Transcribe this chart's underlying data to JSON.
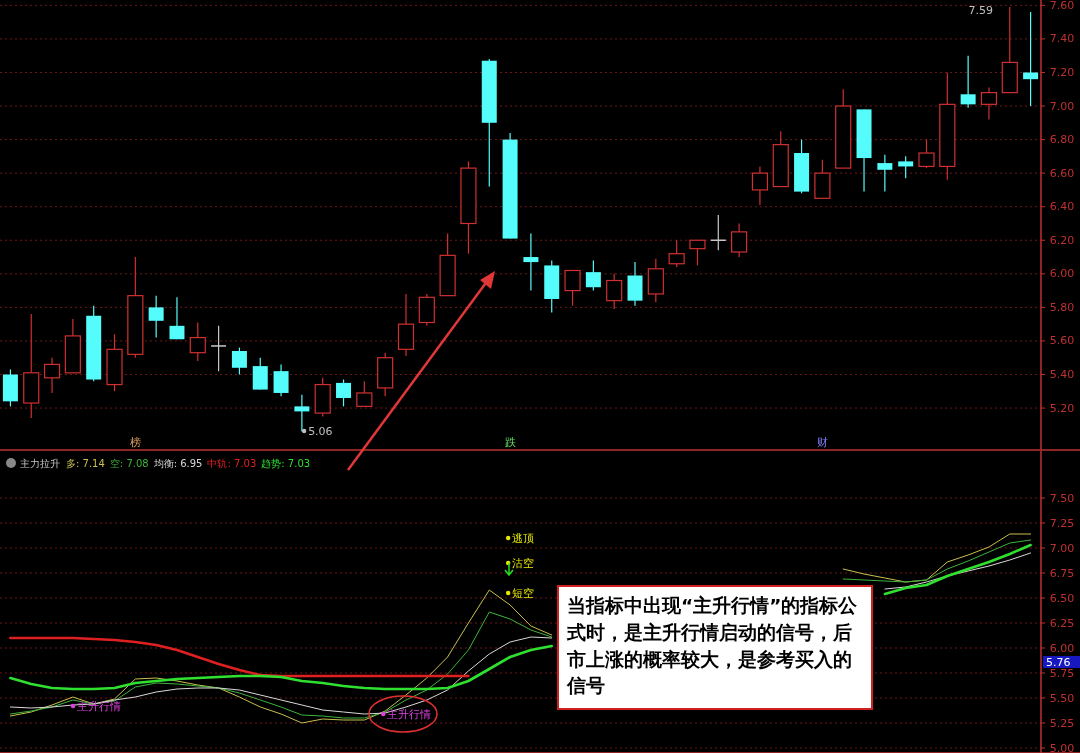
{
  "chart_data": [
    {
      "type": "candlestick",
      "categories": [
        null,
        null,
        null,
        null,
        null,
        null,
        null,
        null,
        null,
        null,
        null,
        null,
        null,
        null,
        null,
        null,
        null,
        null,
        null,
        null,
        null,
        null,
        null,
        null,
        null,
        null,
        null,
        null,
        null,
        null,
        null,
        null,
        null,
        null,
        null,
        null,
        null,
        null,
        null,
        null,
        null,
        null,
        null,
        null,
        null,
        null,
        null,
        null,
        null,
        null
      ],
      "ohlc": [
        [
          5.4,
          5.43,
          5.21,
          5.24
        ],
        [
          5.23,
          5.76,
          5.14,
          5.41
        ],
        [
          5.38,
          5.5,
          5.29,
          5.46
        ],
        [
          5.41,
          5.73,
          5.41,
          5.63
        ],
        [
          5.75,
          5.81,
          5.36,
          5.37
        ],
        [
          5.34,
          5.64,
          5.3,
          5.55
        ],
        [
          5.52,
          6.1,
          5.5,
          5.87
        ],
        [
          5.8,
          5.87,
          5.62,
          5.72
        ],
        [
          5.69,
          5.86,
          5.61,
          5.61
        ],
        [
          5.53,
          5.71,
          5.48,
          5.62
        ],
        [
          5.57,
          5.69,
          5.42,
          5.57
        ],
        [
          5.54,
          5.56,
          5.4,
          5.44
        ],
        [
          5.45,
          5.5,
          5.31,
          5.31
        ],
        [
          5.42,
          5.46,
          5.27,
          5.29
        ],
        [
          5.21,
          5.28,
          5.06,
          5.18
        ],
        [
          5.17,
          5.38,
          5.15,
          5.34
        ],
        [
          5.35,
          5.37,
          5.21,
          5.26
        ],
        [
          5.21,
          5.36,
          5.21,
          5.29
        ],
        [
          5.32,
          5.53,
          5.27,
          5.5
        ],
        [
          5.55,
          5.88,
          5.51,
          5.7
        ],
        [
          5.71,
          5.88,
          5.69,
          5.86
        ],
        [
          5.87,
          6.24,
          5.87,
          6.11
        ],
        [
          6.3,
          6.67,
          6.12,
          6.63
        ],
        [
          7.27,
          7.28,
          6.52,
          6.9
        ],
        [
          6.8,
          6.84,
          6.21,
          6.21
        ],
        [
          6.1,
          6.24,
          5.9,
          6.07
        ],
        [
          6.05,
          6.08,
          5.77,
          5.85
        ],
        [
          5.9,
          6.02,
          5.81,
          6.02
        ],
        [
          6.01,
          6.08,
          5.9,
          5.92
        ],
        [
          5.84,
          6.0,
          5.79,
          5.96
        ],
        [
          5.99,
          6.07,
          5.81,
          5.84
        ],
        [
          5.88,
          6.09,
          5.83,
          6.03
        ],
        [
          6.06,
          6.2,
          6.04,
          6.12
        ],
        [
          6.15,
          6.2,
          6.05,
          6.2
        ],
        [
          6.2,
          6.35,
          6.14,
          6.2
        ],
        [
          6.13,
          6.3,
          6.1,
          6.25
        ],
        [
          6.5,
          6.64,
          6.41,
          6.6
        ],
        [
          6.52,
          6.85,
          6.52,
          6.77
        ],
        [
          6.72,
          6.8,
          6.48,
          6.49
        ],
        [
          6.45,
          6.68,
          6.45,
          6.6
        ],
        [
          6.63,
          7.1,
          6.63,
          7.0
        ],
        [
          6.98,
          6.98,
          6.49,
          6.69
        ],
        [
          6.66,
          6.71,
          6.49,
          6.62
        ],
        [
          6.67,
          6.7,
          6.57,
          6.64
        ],
        [
          6.64,
          6.8,
          6.63,
          6.72
        ],
        [
          6.64,
          7.2,
          6.56,
          7.01
        ],
        [
          7.07,
          7.3,
          6.99,
          7.01
        ],
        [
          7.01,
          7.11,
          6.92,
          7.08
        ],
        [
          7.08,
          7.59,
          7.08,
          7.26
        ],
        [
          7.2,
          7.56,
          7.0,
          7.16
        ]
      ],
      "colors": [
        "#54fcfc",
        "#d03030",
        "#d03030",
        "#d03030",
        "#54fcfc",
        "#d03030",
        "#d03030",
        "#54fcfc",
        "#54fcfc",
        "#d03030",
        "#c8c8c8",
        "#54fcfc",
        "#54fcfc",
        "#54fcfc",
        "#54fcfc",
        "#d03030",
        "#54fcfc",
        "#d03030",
        "#d03030",
        "#d03030",
        "#d03030",
        "#d03030",
        "#d03030",
        "#54fcfc",
        "#54fcfc",
        "#54fcfc",
        "#54fcfc",
        "#d03030",
        "#54fcfc",
        "#d03030",
        "#54fcfc",
        "#d03030",
        "#d03030",
        "#d03030",
        "#c8c8c8",
        "#d03030",
        "#d03030",
        "#d03030",
        "#54fcfc",
        "#d03030",
        "#d03030",
        "#54fcfc",
        "#54fcfc",
        "#54fcfc",
        "#d03030",
        "#d03030",
        "#54fcfc",
        "#d03030",
        "#d03030",
        "#54fcfc"
      ],
      "ylim": [
        4.95,
        7.62
      ],
      "yticks": [
        {
          "value": 5.2,
          "label": "5.20"
        },
        {
          "value": 5.4,
          "label": "5.40"
        },
        {
          "value": 5.6,
          "label": "5.60"
        },
        {
          "value": 5.8,
          "label": "5.80"
        },
        {
          "value": 6.0,
          "label": "6.00"
        },
        {
          "value": 6.2,
          "label": "6.20"
        },
        {
          "value": 6.4,
          "label": "6.40"
        },
        {
          "value": 6.6,
          "label": "6.60"
        },
        {
          "value": 6.8,
          "label": "6.80"
        },
        {
          "value": 7.0,
          "label": "7.00"
        },
        {
          "value": 7.2,
          "label": "7.20"
        },
        {
          "value": 7.4,
          "label": "7.40"
        },
        {
          "value": 7.6,
          "label": "7.60"
        }
      ],
      "grid": "y",
      "tick_labels": "y",
      "annotations": [
        "榜",
        "跌",
        "财",
        "5.06",
        "7.59"
      ]
    },
    {
      "type": "line",
      "title": "主力拉升",
      "categories": [
        null,
        null,
        null,
        null,
        null,
        null,
        null,
        null,
        null,
        null,
        null,
        null,
        null,
        null,
        null,
        null,
        null,
        null,
        null,
        null,
        null,
        null,
        null,
        null,
        null,
        null,
        null,
        null,
        null,
        null,
        null,
        null,
        null,
        null,
        null,
        null,
        null,
        null,
        null,
        null,
        null,
        null,
        null,
        null,
        null,
        null,
        null,
        null,
        null,
        null
      ],
      "series": [
        {
          "name": "多: 7.14",
          "color": "#c8c050",
          "values": [
            5.32,
            5.36,
            5.43,
            5.51,
            5.44,
            5.49,
            5.69,
            5.7,
            5.67,
            5.63,
            5.6,
            5.51,
            5.41,
            5.34,
            5.25,
            5.29,
            5.28,
            5.28,
            5.37,
            5.53,
            5.7,
            5.91,
            6.25,
            6.58,
            6.43,
            6.22,
            6.13,
            null,
            null,
            null,
            null,
            null,
            null,
            null,
            null,
            null,
            null,
            null,
            null,
            null,
            6.79,
            6.74,
            6.7,
            6.66,
            6.68,
            6.86,
            6.93,
            7.01,
            7.14,
            7.14
          ]
        },
        {
          "name": "空: 7.08",
          "color": "#3cb43c",
          "values": [
            5.34,
            5.37,
            5.41,
            5.48,
            5.44,
            5.47,
            5.61,
            5.65,
            5.64,
            5.62,
            5.6,
            5.55,
            5.48,
            5.41,
            5.33,
            5.32,
            5.3,
            5.3,
            5.36,
            5.48,
            5.58,
            5.74,
            5.98,
            6.36,
            6.29,
            6.18,
            6.11,
            null,
            null,
            null,
            null,
            null,
            null,
            null,
            null,
            null,
            null,
            null,
            null,
            null,
            6.69,
            6.68,
            6.67,
            6.66,
            6.68,
            6.79,
            6.87,
            6.96,
            7.05,
            7.08
          ]
        },
        {
          "name": "均衡: 6.95",
          "color": "#d8d8d8",
          "values": [
            5.41,
            5.4,
            5.41,
            5.43,
            5.44,
            5.48,
            5.51,
            5.56,
            5.59,
            5.6,
            5.6,
            5.58,
            5.53,
            5.48,
            5.43,
            5.38,
            5.36,
            5.34,
            5.35,
            5.41,
            5.48,
            5.58,
            5.77,
            5.94,
            6.06,
            6.11,
            6.1,
            null,
            null,
            null,
            null,
            null,
            null,
            null,
            null,
            null,
            null,
            null,
            null,
            null,
            null,
            null,
            6.59,
            6.61,
            6.66,
            6.72,
            6.77,
            6.82,
            6.88,
            6.95
          ]
        },
        {
          "name": "中轨: 7.03",
          "color": "#e02020",
          "values": [
            6.1,
            6.1,
            6.1,
            6.1,
            6.09,
            6.08,
            6.06,
            6.03,
            5.98,
            5.91,
            5.84,
            5.78,
            5.73,
            5.72,
            5.72,
            5.72,
            5.72,
            5.72,
            5.72,
            5.72,
            5.72,
            5.72,
            5.72,
            null,
            null,
            null,
            null,
            null,
            null,
            null,
            null,
            null,
            null,
            null,
            null,
            null,
            null,
            null,
            null,
            null,
            null,
            null,
            null,
            null,
            null,
            null,
            null,
            null,
            null,
            null
          ]
        },
        {
          "name": "趋势: 7.03",
          "color": "#30e030",
          "values": [
            5.7,
            5.64,
            5.6,
            5.59,
            5.59,
            5.6,
            5.65,
            5.67,
            5.69,
            5.7,
            5.71,
            5.72,
            5.72,
            5.71,
            5.67,
            5.65,
            5.62,
            5.6,
            5.59,
            5.59,
            5.59,
            5.6,
            5.67,
            5.79,
            5.91,
            5.98,
            6.02,
            null,
            null,
            null,
            null,
            null,
            null,
            null,
            null,
            null,
            null,
            null,
            null,
            null,
            null,
            null,
            6.54,
            6.6,
            6.63,
            6.72,
            6.79,
            6.86,
            6.94,
            7.03
          ]
        }
      ],
      "ylim": [
        4.95,
        7.95
      ],
      "yticks": [
        {
          "value": 5.0,
          "label": "5.00"
        },
        {
          "value": 5.25,
          "label": "5.25"
        },
        {
          "value": 5.5,
          "label": "5.50"
        },
        {
          "value": 5.75,
          "label": "5.75"
        },
        {
          "value": 6.0,
          "label": "6.00"
        },
        {
          "value": 6.25,
          "label": "6.25"
        },
        {
          "value": 6.5,
          "label": "6.50"
        },
        {
          "value": 6.75,
          "label": "6.75"
        },
        {
          "value": 7.0,
          "label": "7.00"
        },
        {
          "value": 7.25,
          "label": "7.25"
        },
        {
          "value": 7.5,
          "label": "7.50"
        }
      ],
      "grid": "y",
      "tick_labels": "y",
      "legend": "top left",
      "marker": "none",
      "line_style": "solid",
      "annotations": [
        "主升行情",
        "主升行情",
        "逃顶",
        "沽空",
        "短空",
        "5.76",
        "当指标中出现“主升行情”的指标公式时，是主升行情启动的信号，后市上涨的概率较大，是参考买入的信号"
      ]
    }
  ]
}
